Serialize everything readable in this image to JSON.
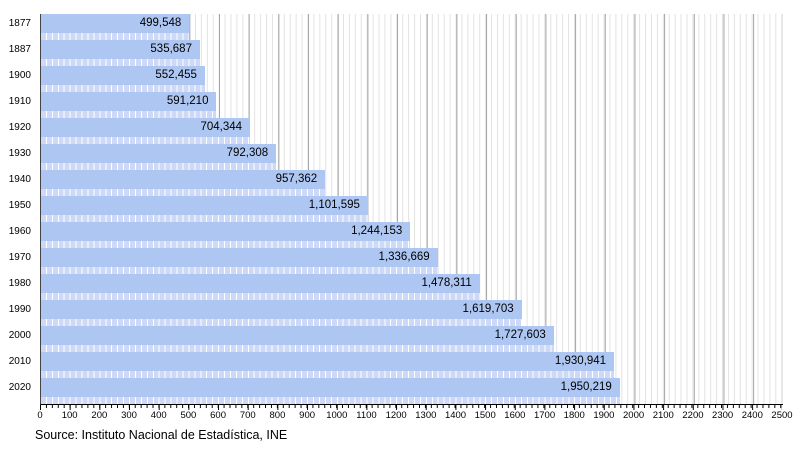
{
  "chart_data": {
    "type": "bar",
    "orientation": "horizontal",
    "title": "",
    "xlabel": "",
    "ylabel": "",
    "categories": [
      "1877",
      "1887",
      "1900",
      "1910",
      "1920",
      "1930",
      "1940",
      "1950",
      "1960",
      "1970",
      "1980",
      "1990",
      "2000",
      "2010",
      "2020"
    ],
    "values": [
      499548,
      535687,
      552455,
      591210,
      704344,
      792308,
      957362,
      1101595,
      1244153,
      1336669,
      1478311,
      1619703,
      1727603,
      1930941,
      1950219
    ],
    "value_labels": [
      "499,548",
      "535,687",
      "552,455",
      "591,210",
      "704,344",
      "792,308",
      "957,362",
      "1,101,595",
      "1,244,153",
      "1,336,669",
      "1,478,311",
      "1,619,703",
      "1,727,603",
      "1,930,941",
      "1,950,219"
    ],
    "xlim": [
      0,
      2500000
    ],
    "x_tick_labels": [
      "0",
      "100",
      "200",
      "300",
      "400",
      "500",
      "600",
      "700",
      "800",
      "900",
      "1000",
      "1100",
      "1200",
      "1300",
      "1400",
      "1500",
      "1600",
      "1700",
      "1800",
      "1900",
      "2000",
      "2100",
      "2200",
      "2300",
      "2400",
      "2500"
    ],
    "x_minor_step": 20,
    "grid": true,
    "legend": false
  },
  "source_note": "Source: Instituto Nacional de Estadística, INE",
  "colors": {
    "bar": "#aec7f2",
    "bar_strip": "#cdd9f6",
    "grid_major": "#a3a3a3",
    "grid_minor": "#e2e2e2",
    "axis": "#000000"
  }
}
